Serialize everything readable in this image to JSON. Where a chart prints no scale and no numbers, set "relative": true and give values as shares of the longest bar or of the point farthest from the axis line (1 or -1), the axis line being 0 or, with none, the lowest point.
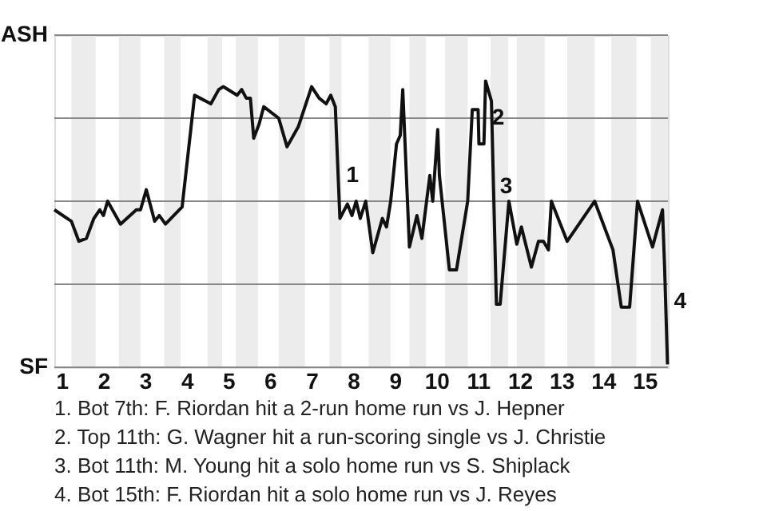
{
  "chart_data": {
    "type": "line",
    "color": "#111111",
    "relative": true,
    "x": [
      0.82,
      1.23,
      1.41,
      1.59,
      1.77,
      1.91,
      2.0,
      2.1,
      2.41,
      2.79,
      2.89,
      3.03,
      3.23,
      3.34,
      3.49,
      3.89,
      4.19,
      4.58,
      4.77,
      4.88,
      5.21,
      5.32,
      5.43,
      5.53,
      5.61,
      5.74,
      5.85,
      6.21,
      6.41,
      6.68,
      7.0,
      7.18,
      7.35,
      7.46,
      7.57,
      7.68,
      7.86,
      7.97,
      8.07,
      8.17,
      8.3,
      8.47,
      8.7,
      8.8,
      8.9,
      9.04,
      9.13,
      9.19,
      9.35,
      9.53,
      9.65,
      9.84,
      9.91,
      10.03,
      10.07,
      10.31,
      10.48,
      10.75,
      10.86,
      11.0,
      11.02,
      11.14,
      11.18,
      11.32,
      11.37,
      11.44,
      11.53,
      11.74,
      11.93,
      12.04,
      12.28,
      12.45,
      12.57,
      12.69,
      12.76,
      13.14,
      13.8,
      14.24,
      14.44,
      14.64,
      14.83,
      15.19,
      15.43,
      15.48,
      15.55
    ],
    "values": [
      0.55,
      0.51,
      0.44,
      0.45,
      0.52,
      0.55,
      0.53,
      0.58,
      0.5,
      0.55,
      0.55,
      0.62,
      0.51,
      0.53,
      0.5,
      0.56,
      0.95,
      0.92,
      0.97,
      0.98,
      0.95,
      0.97,
      0.94,
      0.94,
      0.8,
      0.85,
      0.91,
      0.87,
      0.77,
      0.84,
      0.98,
      0.94,
      0.92,
      0.95,
      0.91,
      0.52,
      0.57,
      0.53,
      0.58,
      0.52,
      0.58,
      0.4,
      0.52,
      0.49,
      0.58,
      0.78,
      0.81,
      0.97,
      0.42,
      0.53,
      0.45,
      0.67,
      0.58,
      0.83,
      0.67,
      0.34,
      0.34,
      0.58,
      0.9,
      0.9,
      0.78,
      0.78,
      1,
      0.93,
      0.63,
      0.22,
      0.22,
      0.58,
      0.43,
      0.49,
      0.35,
      0.44,
      0.44,
      0.41,
      0.58,
      0.44,
      0.58,
      0.41,
      0.21,
      0.21,
      0.58,
      0.42,
      0.55,
      0.35,
      0.01
    ],
    "xlim": [
      0.82,
      15.56
    ],
    "xticks": [
      1,
      2,
      3,
      4,
      5,
      6,
      7,
      8,
      9,
      10,
      11,
      12,
      13,
      14,
      15
    ],
    "marker": "none",
    "line_style": "solid",
    "ref_lines": [
      {
        "axis": "y",
        "value": 0,
        "label": "SF",
        "color": "#888888"
      },
      {
        "axis": "y",
        "value": 0.29,
        "label": null,
        "color": "#888888"
      },
      {
        "axis": "y",
        "value": 0.58,
        "label": null,
        "color": "#888888"
      },
      {
        "axis": "y",
        "value": 0.87,
        "label": null,
        "color": "#888888"
      },
      {
        "axis": "y",
        "value": 1.16,
        "label": "ASH",
        "color": "#888888"
      }
    ],
    "bands": [
      {
        "axis": "x",
        "from": 1.23,
        "to": 1.81,
        "color": "#ececec"
      },
      {
        "axis": "x",
        "from": 2.37,
        "to": 2.89,
        "color": "#ececec"
      },
      {
        "axis": "x",
        "from": 3.46,
        "to": 3.85,
        "color": "#ececec"
      },
      {
        "axis": "x",
        "from": 4.5,
        "to": 4.85,
        "color": "#ececec"
      },
      {
        "axis": "x",
        "from": 5.18,
        "to": 5.71,
        "color": "#ececec"
      },
      {
        "axis": "x",
        "from": 6.21,
        "to": 6.84,
        "color": "#ececec"
      },
      {
        "axis": "x",
        "from": 7.43,
        "to": 7.72,
        "color": "#ececec"
      },
      {
        "axis": "x",
        "from": 8.37,
        "to": 8.9,
        "color": "#ececec"
      },
      {
        "axis": "x",
        "from": 9.35,
        "to": 9.75,
        "color": "#ececec"
      },
      {
        "axis": "x",
        "from": 10.21,
        "to": 10.75,
        "color": "#ececec"
      },
      {
        "axis": "x",
        "from": 11.3,
        "to": 11.72,
        "color": "#ececec"
      },
      {
        "axis": "x",
        "from": 11.93,
        "to": 12.6,
        "color": "#ececec"
      },
      {
        "axis": "x",
        "from": 13.14,
        "to": 13.8,
        "color": "#ececec"
      },
      {
        "axis": "x",
        "from": 14.2,
        "to": 14.8,
        "color": "#ececec"
      },
      {
        "axis": "x",
        "from": 15.15,
        "to": 15.56,
        "color": "#ececec"
      }
    ],
    "annotations": [
      {
        "text": "1",
        "x": 7.68,
        "y": 0.67
      },
      {
        "text": "2",
        "x": 11.18,
        "y": 0.87
      },
      {
        "text": "3",
        "x": 11.37,
        "y": 0.63
      },
      {
        "text": "4",
        "x": 15.55,
        "y": 0.23
      },
      "1. Bot 7th: F. Riordan hit a 2-run home run vs J. Hepner",
      "2. Top 11th: G. Wagner hit a run-scoring single vs J. Christie",
      "3. Bot 11th: M. Young hit a solo home run vs S. Shiplack",
      "4. Bot 15th: F. Riordan hit a solo home run vs J. Reyes"
    ]
  }
}
